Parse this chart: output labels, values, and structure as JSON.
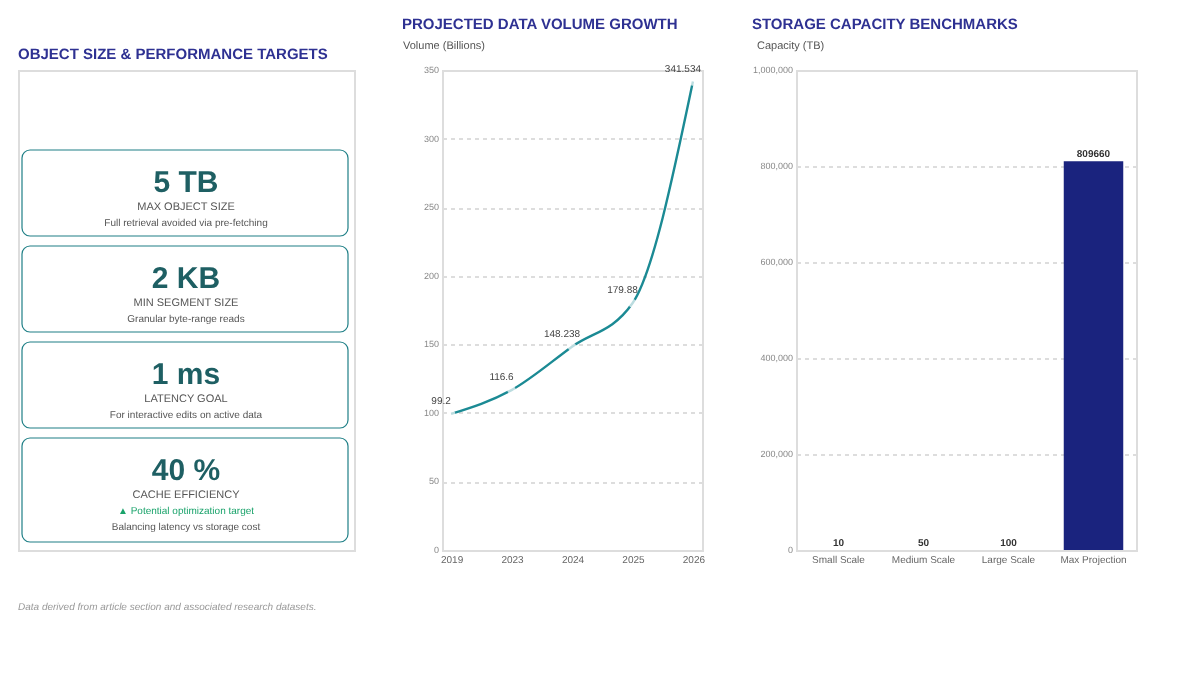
{
  "chart_data": [
    {
      "type": "other",
      "title": "OBJECT SIZE & PERFORMANCE TARGETS",
      "annotations": [
        "5 TB",
        "MAX OBJECT SIZE",
        "Full retrieval avoided via pre-fetching",
        "2 KB",
        "MIN SEGMENT SIZE",
        "Granular byte-range reads",
        "1 ms",
        "LATENCY GOAL",
        "For interactive edits on active data",
        "40 %",
        "CACHE EFFICIENCY",
        "▲ Potential optimization target",
        "Balancing latency vs storage cost",
        "Data derived from article section and associated research datasets."
      ]
    },
    {
      "type": "line",
      "title": "PROJECTED DATA VOLUME GROWTH",
      "ylabel": "Volume (Billions)",
      "categories": [
        "2019",
        "2023",
        "2024",
        "2025",
        "2026"
      ],
      "series": [
        {
          "color": "#1b8a94",
          "values": [
            99.2,
            116.6,
            148.238,
            179.88,
            341.534
          ]
        }
      ],
      "ylim": [
        0,
        350
      ],
      "yticks": [
        0,
        50,
        100,
        150,
        200,
        250,
        300,
        350
      ],
      "grid": "y",
      "marker": "circle",
      "data_labels": true
    },
    {
      "type": "bar",
      "title": "STORAGE CAPACITY BENCHMARKS",
      "ylabel": "Capacity (TB)",
      "categories": [
        "Small Scale",
        "Medium Scale",
        "Large Scale",
        "Max Projection"
      ],
      "series": [
        {
          "color": "#1a237e",
          "values": [
            10,
            50,
            100,
            809660
          ]
        }
      ],
      "ylim": [
        0,
        1000000
      ],
      "yticks": [
        0,
        {
          "value": 200000,
          "label": "200,000"
        },
        {
          "value": 400000,
          "label": "400,000"
        },
        {
          "value": 600000,
          "label": "600,000"
        },
        {
          "value": 800000,
          "label": "800,000"
        },
        {
          "value": 1000000,
          "label": "1,000,000"
        }
      ],
      "grid": "y",
      "data_labels": true
    }
  ]
}
